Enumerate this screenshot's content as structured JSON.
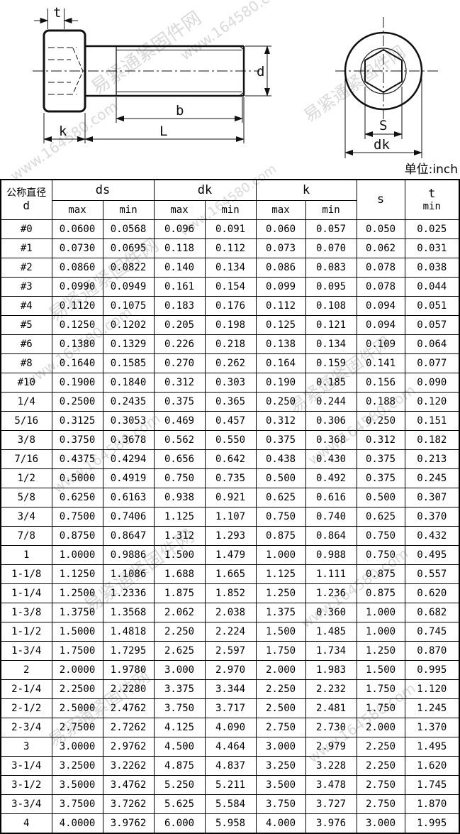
{
  "unit_label": "单位:inch",
  "watermarks": [
    "易紧通紧固件网",
    "www.164580.com"
  ],
  "drawing": {
    "labels": {
      "t": "t",
      "d": "d",
      "b": "b",
      "k": "k",
      "L": "L",
      "s": "S",
      "dk": "dk"
    }
  },
  "table": {
    "header": {
      "col_d_line1": "公称直径",
      "col_d_line2": "d",
      "col_ds": "ds",
      "col_dk": "dk",
      "col_k": "k",
      "col_s": "s",
      "col_t_line1": "t",
      "col_t_line2": "min",
      "max": "max",
      "min": "min"
    },
    "rows": [
      [
        "#0",
        "0.0600",
        "0.0568",
        "0.096",
        "0.091",
        "0.060",
        "0.057",
        "0.050",
        "0.025"
      ],
      [
        "#1",
        "0.0730",
        "0.0695",
        "0.118",
        "0.112",
        "0.073",
        "0.070",
        "0.062",
        "0.031"
      ],
      [
        "#2",
        "0.0860",
        "0.0822",
        "0.140",
        "0.134",
        "0.086",
        "0.083",
        "0.078",
        "0.038"
      ],
      [
        "#3",
        "0.0990",
        "0.0949",
        "0.161",
        "0.154",
        "0.099",
        "0.095",
        "0.078",
        "0.044"
      ],
      [
        "#4",
        "0.1120",
        "0.1075",
        "0.183",
        "0.176",
        "0.112",
        "0.108",
        "0.094",
        "0.051"
      ],
      [
        "#5",
        "0.1250",
        "0.1202",
        "0.205",
        "0.198",
        "0.125",
        "0.121",
        "0.094",
        "0.057"
      ],
      [
        "#6",
        "0.1380",
        "0.1329",
        "0.226",
        "0.218",
        "0.138",
        "0.134",
        "0.109",
        "0.064"
      ],
      [
        "#8",
        "0.1640",
        "0.1585",
        "0.270",
        "0.262",
        "0.164",
        "0.159",
        "0.141",
        "0.077"
      ],
      [
        "#10",
        "0.1900",
        "0.1840",
        "0.312",
        "0.303",
        "0.190",
        "0.185",
        "0.156",
        "0.090"
      ],
      [
        "1/4",
        "0.2500",
        "0.2435",
        "0.375",
        "0.365",
        "0.250",
        "0.244",
        "0.188",
        "0.120"
      ],
      [
        "5/16",
        "0.3125",
        "0.3053",
        "0.469",
        "0.457",
        "0.312",
        "0.306",
        "0.250",
        "0.151"
      ],
      [
        "3/8",
        "0.3750",
        "0.3678",
        "0.562",
        "0.550",
        "0.375",
        "0.368",
        "0.312",
        "0.182"
      ],
      [
        "7/16",
        "0.4375",
        "0.4294",
        "0.656",
        "0.642",
        "0.438",
        "0.430",
        "0.375",
        "0.213"
      ],
      [
        "1/2",
        "0.5000",
        "0.4919",
        "0.750",
        "0.735",
        "0.500",
        "0.492",
        "0.375",
        "0.245"
      ],
      [
        "5/8",
        "0.6250",
        "0.6163",
        "0.938",
        "0.921",
        "0.625",
        "0.616",
        "0.500",
        "0.307"
      ],
      [
        "3/4",
        "0.7500",
        "0.7406",
        "1.125",
        "1.107",
        "0.750",
        "0.740",
        "0.625",
        "0.370"
      ],
      [
        "7/8",
        "0.8750",
        "0.8647",
        "1.312",
        "1.293",
        "0.875",
        "0.864",
        "0.750",
        "0.432"
      ],
      [
        "1",
        "1.0000",
        "0.9886",
        "1.500",
        "1.479",
        "1.000",
        "0.988",
        "0.750",
        "0.495"
      ],
      [
        "1-1/8",
        "1.1250",
        "1.1086",
        "1.688",
        "1.665",
        "1.125",
        "1.111",
        "0.875",
        "0.557"
      ],
      [
        "1-1/4",
        "1.2500",
        "1.2336",
        "1.875",
        "1.852",
        "1.250",
        "1.236",
        "0.875",
        "0.620"
      ],
      [
        "1-3/8",
        "1.3750",
        "1.3568",
        "2.062",
        "2.038",
        "1.375",
        "0.360",
        "1.000",
        "0.682"
      ],
      [
        "1-1/2",
        "1.5000",
        "1.4818",
        "2.250",
        "2.224",
        "1.500",
        "1.485",
        "1.000",
        "0.745"
      ],
      [
        "1-3/4",
        "1.7500",
        "1.7295",
        "2.625",
        "2.597",
        "1.750",
        "1.734",
        "1.250",
        "0.870"
      ],
      [
        "2",
        "2.0000",
        "1.9780",
        "3.000",
        "2.970",
        "2.000",
        "1.983",
        "1.500",
        "0.995"
      ],
      [
        "2-1/4",
        "2.2500",
        "2.2280",
        "3.375",
        "3.344",
        "2.250",
        "2.232",
        "1.750",
        "1.120"
      ],
      [
        "2-1/2",
        "2.5000",
        "2.4762",
        "3.750",
        "3.717",
        "2.500",
        "2.481",
        "1.750",
        "1.245"
      ],
      [
        "2-3/4",
        "2.7500",
        "2.7262",
        "4.125",
        "4.090",
        "2.750",
        "2.730",
        "2.000",
        "1.370"
      ],
      [
        "3",
        "3.0000",
        "2.9762",
        "4.500",
        "4.464",
        "3.000",
        "2.979",
        "2.250",
        "1.495"
      ],
      [
        "3-1/4",
        "3.2500",
        "3.2262",
        "4.875",
        "4.837",
        "3.250",
        "3.228",
        "2.250",
        "1.620"
      ],
      [
        "3-1/2",
        "3.5000",
        "3.4762",
        "5.250",
        "5.211",
        "3.500",
        "3.478",
        "2.750",
        "1.745"
      ],
      [
        "3-3/4",
        "3.7500",
        "3.7262",
        "5.625",
        "5.584",
        "3.750",
        "3.727",
        "2.750",
        "1.870"
      ],
      [
        "4",
        "4.0000",
        "3.9762",
        "6.000",
        "5.958",
        "4.000",
        "3.976",
        "3.000",
        "1.995"
      ]
    ]
  }
}
